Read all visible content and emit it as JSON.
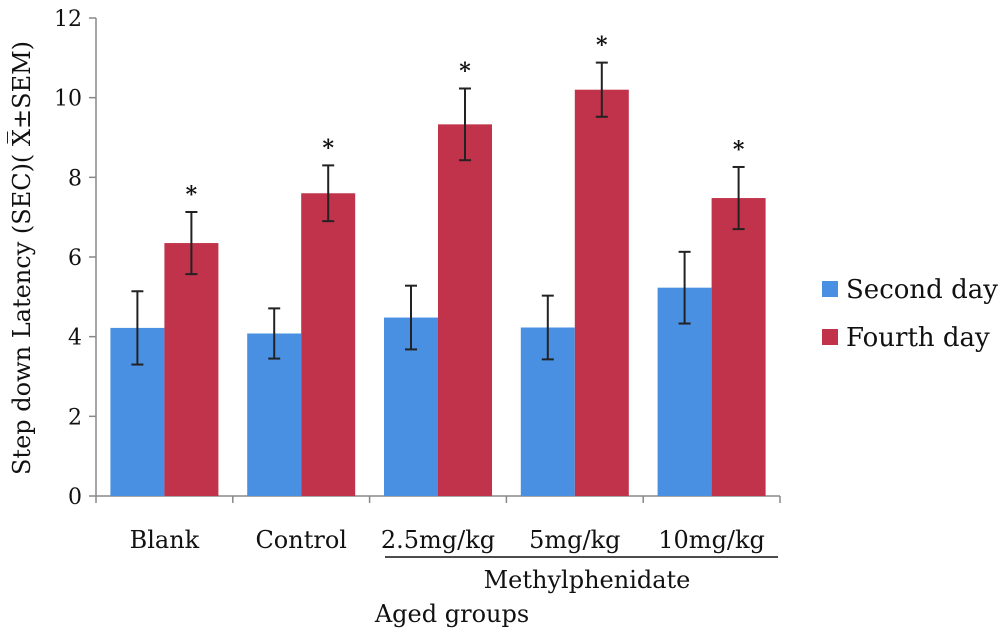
{
  "chart_data": {
    "type": "bar",
    "ylabel": "Step down Latency (SEC)( X̅±SEM)",
    "xlabel": "Aged groups",
    "group_label": "Methylphenidate",
    "categories": [
      "Blank",
      "Control",
      "2.5mg/kg",
      "5mg/kg",
      "10mg/kg"
    ],
    "series": [
      {
        "name": "Second day",
        "color": "#4a90e2",
        "values": [
          4.22,
          4.08,
          4.48,
          4.23,
          5.23
        ],
        "errors": [
          0.92,
          0.63,
          0.8,
          0.8,
          0.9
        ]
      },
      {
        "name": "Fourth day",
        "color": "#c0334a",
        "values": [
          6.35,
          7.6,
          9.33,
          10.2,
          7.48
        ],
        "errors": [
          0.78,
          0.7,
          0.9,
          0.68,
          0.78
        ]
      }
    ],
    "significance_marker": "*",
    "ylim": [
      0,
      12
    ],
    "yticks": [
      0,
      2,
      4,
      6,
      8,
      10,
      12
    ],
    "grid": false,
    "legend_position": "right"
  }
}
